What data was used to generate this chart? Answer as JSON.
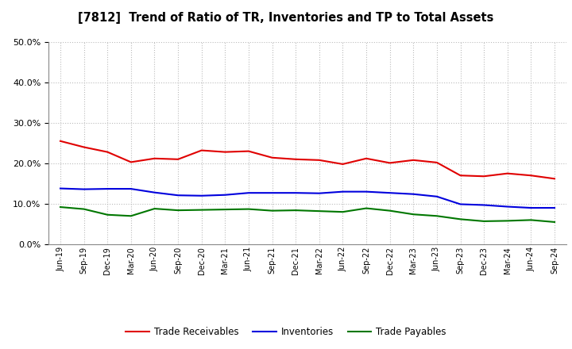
{
  "title": "[7812]  Trend of Ratio of TR, Inventories and TP to Total Assets",
  "x_labels": [
    "Jun-19",
    "Sep-19",
    "Dec-19",
    "Mar-20",
    "Jun-20",
    "Sep-20",
    "Dec-20",
    "Mar-21",
    "Jun-21",
    "Sep-21",
    "Dec-21",
    "Mar-22",
    "Jun-22",
    "Sep-22",
    "Dec-22",
    "Mar-23",
    "Jun-23",
    "Sep-23",
    "Dec-23",
    "Mar-24",
    "Jun-24",
    "Sep-24"
  ],
  "trade_receivables": [
    0.255,
    0.24,
    0.228,
    0.203,
    0.212,
    0.21,
    0.232,
    0.228,
    0.23,
    0.214,
    0.21,
    0.208,
    0.198,
    0.212,
    0.201,
    0.208,
    0.202,
    0.17,
    0.168,
    0.175,
    0.17,
    0.162
  ],
  "inventories": [
    0.138,
    0.136,
    0.137,
    0.137,
    0.128,
    0.121,
    0.12,
    0.122,
    0.127,
    0.127,
    0.127,
    0.126,
    0.13,
    0.13,
    0.127,
    0.124,
    0.118,
    0.099,
    0.097,
    0.093,
    0.09,
    0.09
  ],
  "trade_payables": [
    0.092,
    0.087,
    0.073,
    0.07,
    0.088,
    0.084,
    0.085,
    0.086,
    0.087,
    0.083,
    0.084,
    0.082,
    0.08,
    0.089,
    0.083,
    0.074,
    0.07,
    0.062,
    0.057,
    0.058,
    0.06,
    0.055
  ],
  "ylim": [
    0.0,
    0.5
  ],
  "yticks": [
    0.0,
    0.1,
    0.2,
    0.3,
    0.4,
    0.5
  ],
  "color_tr": "#e00000",
  "color_inv": "#0000dd",
  "color_tp": "#007700",
  "background_color": "#ffffff",
  "grid_color": "#aaaaaa",
  "legend_labels": [
    "Trade Receivables",
    "Inventories",
    "Trade Payables"
  ]
}
